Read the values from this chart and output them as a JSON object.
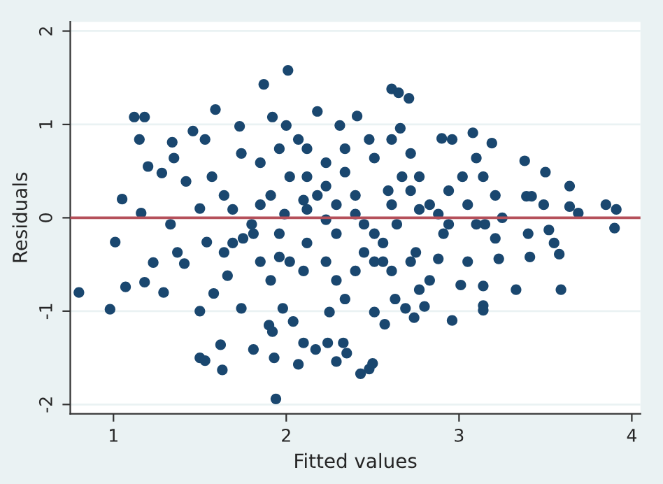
{
  "chart_data": {
    "type": "scatter",
    "xlabel": "Fitted values",
    "ylabel": "Residuals",
    "xlim": [
      0.75,
      4.05
    ],
    "ylim": [
      -2.1,
      2.1
    ],
    "xticks": [
      1,
      2,
      3,
      4
    ],
    "yticks": [
      -2,
      -1,
      0,
      1,
      2
    ],
    "grid": "y",
    "marker": "circle",
    "legend": false,
    "ref_lines": [
      {
        "axis": "y",
        "value": 0,
        "color": "#b5505a"
      }
    ],
    "series": [
      {
        "color": "#1a476f",
        "x": [
          0.8,
          0.98,
          1.01,
          1.05,
          1.07,
          1.12,
          1.18,
          1.15,
          1.16,
          1.2,
          1.18,
          1.23,
          1.28,
          1.29,
          1.34,
          1.35,
          1.33,
          1.37,
          1.42,
          1.41,
          1.46,
          1.5,
          1.5,
          1.5,
          1.53,
          1.54,
          1.53,
          1.59,
          1.58,
          1.62,
          1.63,
          1.57,
          1.64,
          1.66,
          1.73,
          1.74,
          1.69,
          1.74,
          1.81,
          1.81,
          1.87,
          1.85,
          1.9,
          1.92,
          1.93,
          1.94,
          1.92,
          1.91,
          1.96,
          1.98,
          2.01,
          2.0,
          1.99,
          2.04,
          2.07,
          2.1,
          2.17,
          2.18,
          2.12,
          2.12,
          2.1,
          2.24,
          2.29,
          2.25,
          2.33,
          2.35,
          2.31,
          2.23,
          2.29,
          2.34,
          2.41,
          2.43,
          2.48,
          2.5,
          2.4,
          2.45,
          2.48,
          2.51,
          2.57,
          2.61,
          2.65,
          2.71,
          2.66,
          2.59,
          2.56,
          2.64,
          2.63,
          2.69,
          2.74,
          2.72,
          2.77,
          2.75,
          2.8,
          2.83,
          2.9,
          2.96,
          2.96,
          2.94,
          2.91,
          2.88,
          3.01,
          3.02,
          3.05,
          3.08,
          3.1,
          3.14,
          3.14,
          3.14,
          3.14,
          3.15,
          3.19,
          3.21,
          3.21,
          3.23,
          3.25,
          3.33,
          3.38,
          3.39,
          3.42,
          3.41,
          3.4,
          3.49,
          3.5,
          3.52,
          3.55,
          3.59,
          3.58,
          3.64,
          3.64,
          3.69,
          3.85,
          3.91,
          3.9,
          1.96,
          2.07,
          2.02,
          2.18,
          2.1,
          2.23,
          2.29,
          2.4,
          2.45,
          2.51,
          2.56,
          2.61,
          2.67,
          2.72,
          2.77,
          2.83,
          2.88,
          2.94,
          3.05,
          3.1,
          1.85,
          1.8,
          1.75,
          1.69,
          1.64,
          1.96,
          2.02,
          2.12,
          2.23,
          2.29,
          2.34,
          2.4,
          2.51,
          2.61,
          2.72,
          2.77,
          1.91,
          1.85,
          2.23,
          2.34,
          2.51,
          2.61,
          2.12
        ],
        "values": [
          -0.8,
          -0.98,
          -0.26,
          0.2,
          -0.74,
          1.08,
          1.08,
          0.84,
          0.05,
          0.55,
          -0.69,
          -0.48,
          0.48,
          -0.8,
          0.81,
          0.64,
          -0.07,
          -0.37,
          0.39,
          -0.49,
          0.93,
          0.1,
          -1.0,
          -1.5,
          -1.53,
          -0.26,
          0.84,
          1.16,
          -0.81,
          -1.36,
          -1.63,
          0.44,
          -0.37,
          -0.62,
          0.98,
          -0.97,
          0.09,
          0.69,
          -1.41,
          -0.17,
          1.43,
          0.59,
          -1.15,
          -1.22,
          -1.5,
          -1.94,
          1.08,
          0.24,
          -0.42,
          -0.97,
          1.58,
          0.99,
          0.04,
          -1.11,
          -1.57,
          -1.34,
          -1.41,
          1.14,
          0.74,
          0.09,
          -0.57,
          -1.34,
          -1.54,
          -1.01,
          -1.34,
          -1.45,
          0.99,
          0.34,
          -0.17,
          0.49,
          1.09,
          -1.67,
          -1.62,
          -1.56,
          0.04,
          -0.37,
          0.84,
          -1.01,
          -1.14,
          1.38,
          1.34,
          1.28,
          0.96,
          0.29,
          -0.47,
          -0.07,
          -0.87,
          -0.97,
          -1.07,
          0.69,
          0.09,
          -0.37,
          -0.95,
          -0.67,
          0.85,
          0.84,
          -1.1,
          0.29,
          -0.17,
          -0.44,
          -0.72,
          0.44,
          -0.47,
          0.91,
          0.64,
          0.44,
          -0.94,
          -0.99,
          -0.73,
          -0.07,
          0.8,
          0.24,
          -0.22,
          -0.44,
          0.0,
          -0.77,
          0.61,
          0.23,
          0.23,
          -0.42,
          -0.17,
          0.14,
          0.49,
          -0.13,
          -0.27,
          -0.77,
          -0.39,
          0.34,
          0.12,
          0.05,
          0.14,
          0.09,
          -0.11,
          0.74,
          0.84,
          0.44,
          0.24,
          0.19,
          -0.02,
          0.14,
          0.24,
          -0.07,
          -0.17,
          -0.27,
          0.14,
          0.44,
          0.29,
          0.44,
          0.14,
          0.04,
          -0.07,
          0.14,
          -0.07,
          0.14,
          -0.07,
          -0.22,
          -0.27,
          0.24,
          -0.17,
          -0.47,
          -0.27,
          -0.47,
          -0.67,
          -0.87,
          -0.57,
          -0.47,
          -0.57,
          -0.47,
          -0.77,
          -0.67,
          -0.47,
          0.59,
          0.74,
          0.64,
          0.84,
          0.44
        ]
      }
    ]
  }
}
